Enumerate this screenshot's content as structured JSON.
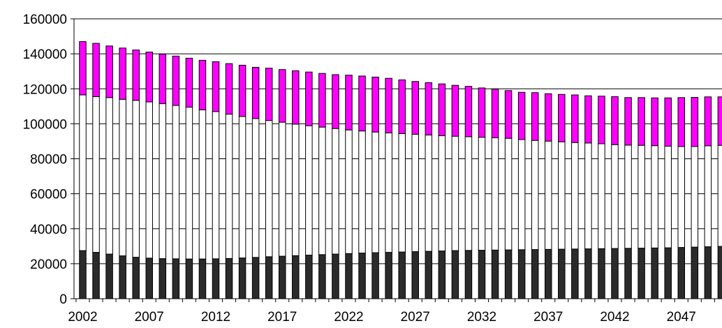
{
  "chart_data": {
    "type": "bar",
    "stacked": true,
    "x": [
      2002,
      2003,
      2004,
      2005,
      2006,
      2007,
      2008,
      2009,
      2010,
      2011,
      2012,
      2013,
      2014,
      2015,
      2016,
      2017,
      2018,
      2019,
      2020,
      2021,
      2022,
      2023,
      2024,
      2025,
      2026,
      2027,
      2028,
      2029,
      2030,
      2031,
      2032,
      2033,
      2034,
      2035,
      2036,
      2037,
      2038,
      2039,
      2040,
      2041,
      2042,
      2043,
      2044,
      2045,
      2046,
      2047,
      2048,
      2049,
      2050
    ],
    "x_tick_labels": [
      "2002",
      "2007",
      "2012",
      "2017",
      "2022",
      "2027",
      "2032",
      "2037",
      "2042",
      "2047"
    ],
    "y_tick_labels": [
      "0",
      "20000",
      "40000",
      "60000",
      "80000",
      "100000",
      "120000",
      "140000",
      "160000"
    ],
    "ylim": [
      0,
      160000
    ],
    "grid": true,
    "title": "",
    "xlabel": "",
    "ylabel": "",
    "series": [
      {
        "color": "#2b2b2b",
        "values": [
          27500,
          26500,
          25500,
          24500,
          23700,
          23200,
          22900,
          22800,
          22700,
          22700,
          22800,
          23000,
          23300,
          23600,
          24000,
          24300,
          24600,
          24900,
          25200,
          25500,
          25800,
          26100,
          26300,
          26500,
          26700,
          26900,
          27100,
          27300,
          27500,
          27600,
          27700,
          27800,
          27900,
          28000,
          28100,
          28200,
          28300,
          28400,
          28500,
          28600,
          28700,
          28800,
          28900,
          29000,
          29100,
          29300,
          29500,
          29700,
          29900
        ]
      },
      {
        "color": "#ffffff",
        "values": [
          89000,
          89000,
          89500,
          89500,
          89700,
          89300,
          88600,
          87700,
          86800,
          85300,
          84200,
          82500,
          80900,
          79400,
          77900,
          76600,
          75200,
          74000,
          72900,
          71800,
          70700,
          69800,
          69000,
          68300,
          67700,
          67100,
          66500,
          65900,
          65400,
          65000,
          64600,
          64200,
          63800,
          63000,
          62400,
          61900,
          61400,
          60900,
          60500,
          60000,
          59400,
          59000,
          58800,
          58500,
          58100,
          57700,
          57500,
          57700,
          57800
        ]
      },
      {
        "color": "#ff00ff",
        "values": [
          30500,
          30500,
          29500,
          29300,
          28800,
          28500,
          28300,
          28200,
          28000,
          28300,
          28500,
          28900,
          29300,
          29300,
          29900,
          30100,
          30500,
          30700,
          30700,
          30800,
          31300,
          31400,
          31400,
          31200,
          30700,
          30200,
          29900,
          29600,
          29100,
          28800,
          28200,
          27800,
          27300,
          27000,
          27300,
          27100,
          27100,
          27200,
          27000,
          27200,
          27400,
          27200,
          27300,
          27300,
          27600,
          28000,
          28100,
          28000,
          27700
        ]
      }
    ]
  }
}
